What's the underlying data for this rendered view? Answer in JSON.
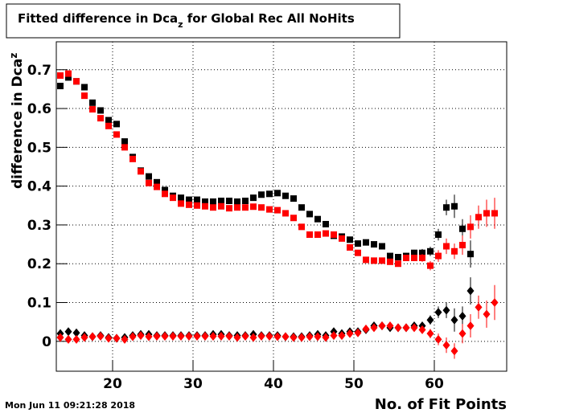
{
  "chart_data": {
    "type": "scatter",
    "title": {
      "text": "Fitted difference in Dca",
      "sub": "z",
      "rest": " for Global Rec All NoHits"
    },
    "ylabel": {
      "text": "difference in Dca",
      "sub": "z"
    },
    "xlabel": "No. of Fit Points",
    "timestamp": "Mon Jun 11 09:21:28 2018",
    "grid": true,
    "xlim": [
      13,
      69
    ],
    "xticks": [
      20,
      30,
      40,
      50,
      60
    ],
    "ylim": [
      -0.077,
      0.772
    ],
    "yticks": [
      0,
      0.1,
      0.2,
      0.3,
      0.4,
      0.5,
      0.6,
      0.7
    ],
    "x": [
      13.5,
      14.5,
      15.5,
      16.5,
      17.5,
      18.5,
      19.5,
      20.5,
      21.5,
      22.5,
      23.5,
      24.5,
      25.5,
      26.5,
      27.5,
      28.5,
      29.5,
      30.5,
      31.5,
      32.5,
      33.5,
      34.5,
      35.5,
      36.5,
      37.5,
      38.5,
      39.5,
      40.5,
      41.5,
      42.5,
      43.5,
      44.5,
      45.5,
      46.5,
      47.5,
      48.5,
      49.5,
      50.5,
      51.5,
      52.5,
      53.5,
      54.5,
      55.5,
      56.5,
      57.5,
      58.5,
      59.5,
      60.5,
      61.5,
      62.5,
      63.5,
      64.5,
      65.5,
      66.5,
      67.5
    ],
    "series": [
      {
        "color": "#000000",
        "marker": "square",
        "values": [
          0.658,
          0.68,
          0.67,
          0.655,
          0.615,
          0.595,
          0.57,
          0.56,
          0.515,
          0.475,
          0.44,
          0.425,
          0.41,
          0.39,
          0.375,
          0.37,
          0.365,
          0.365,
          0.36,
          0.36,
          0.362,
          0.362,
          0.36,
          0.362,
          0.37,
          0.378,
          0.38,
          0.382,
          0.375,
          0.368,
          0.345,
          0.328,
          0.315,
          0.302,
          0.272,
          0.27,
          0.262,
          0.252,
          0.255,
          0.25,
          0.245,
          0.22,
          0.217,
          0.22,
          0.228,
          0.228,
          0.232,
          0.275,
          0.345,
          0.348,
          0.29,
          0.225,
          null,
          null,
          null
        ],
        "errors": [
          0.005,
          0.005,
          0.005,
          0.005,
          0.005,
          0.005,
          0.005,
          0.005,
          0.005,
          0.005,
          0.005,
          0.005,
          0.005,
          0.005,
          0.005,
          0.005,
          0.005,
          0.005,
          0.005,
          0.005,
          0.005,
          0.005,
          0.005,
          0.005,
          0.005,
          0.005,
          0.005,
          0.005,
          0.005,
          0.005,
          0.005,
          0.005,
          0.005,
          0.005,
          0.005,
          0.005,
          0.005,
          0.005,
          0.005,
          0.005,
          0.005,
          0.005,
          0.005,
          0.008,
          0.008,
          0.01,
          0.012,
          0.015,
          0.02,
          0.03,
          0.025,
          0.035,
          null,
          null,
          null
        ]
      },
      {
        "color": "#ff0000",
        "marker": "square",
        "values": [
          0.685,
          0.69,
          0.67,
          0.633,
          0.598,
          0.575,
          0.555,
          0.533,
          0.5,
          0.47,
          0.438,
          0.408,
          0.398,
          0.38,
          0.37,
          0.355,
          0.352,
          0.35,
          0.348,
          0.345,
          0.348,
          0.343,
          0.345,
          0.345,
          0.347,
          0.345,
          0.34,
          0.338,
          0.33,
          0.318,
          0.295,
          0.275,
          0.275,
          0.278,
          0.275,
          0.265,
          0.242,
          0.228,
          0.21,
          0.208,
          0.208,
          0.205,
          0.2,
          0.215,
          0.215,
          0.215,
          0.195,
          0.22,
          0.245,
          0.232,
          0.248,
          0.295,
          0.32,
          0.33,
          0.33
        ],
        "errors": [
          0.005,
          0.005,
          0.005,
          0.005,
          0.005,
          0.005,
          0.005,
          0.005,
          0.005,
          0.005,
          0.005,
          0.005,
          0.005,
          0.005,
          0.005,
          0.005,
          0.005,
          0.005,
          0.005,
          0.005,
          0.005,
          0.005,
          0.005,
          0.005,
          0.005,
          0.005,
          0.005,
          0.005,
          0.005,
          0.005,
          0.005,
          0.005,
          0.005,
          0.005,
          0.005,
          0.005,
          0.005,
          0.005,
          0.005,
          0.005,
          0.005,
          0.005,
          0.005,
          0.008,
          0.008,
          0.01,
          0.012,
          0.015,
          0.02,
          0.02,
          0.025,
          0.03,
          0.03,
          0.035,
          0.04
        ]
      },
      {
        "color": "#000000",
        "marker": "diamond",
        "values": [
          0.02,
          0.025,
          0.022,
          0.015,
          0.012,
          0.015,
          0.01,
          0.008,
          0.01,
          0.015,
          0.018,
          0.018,
          0.015,
          0.015,
          0.015,
          0.015,
          0.015,
          0.015,
          0.015,
          0.018,
          0.018,
          0.015,
          0.015,
          0.015,
          0.018,
          0.015,
          0.015,
          0.015,
          0.012,
          0.012,
          0.012,
          0.015,
          0.018,
          0.015,
          0.025,
          0.02,
          0.025,
          0.025,
          0.03,
          0.04,
          0.04,
          0.035,
          0.035,
          0.035,
          0.04,
          0.04,
          0.055,
          0.075,
          0.08,
          0.055,
          0.065,
          0.13,
          null,
          null,
          null
        ],
        "errors": [
          0.005,
          0.005,
          0.005,
          0.005,
          0.005,
          0.005,
          0.005,
          0.005,
          0.005,
          0.005,
          0.005,
          0.005,
          0.005,
          0.005,
          0.005,
          0.005,
          0.005,
          0.005,
          0.005,
          0.005,
          0.005,
          0.005,
          0.005,
          0.005,
          0.005,
          0.005,
          0.005,
          0.005,
          0.005,
          0.005,
          0.005,
          0.005,
          0.005,
          0.005,
          0.005,
          0.005,
          0.005,
          0.005,
          0.005,
          0.005,
          0.005,
          0.005,
          0.005,
          0.008,
          0.008,
          0.01,
          0.012,
          0.015,
          0.02,
          0.03,
          0.025,
          0.035,
          null,
          null,
          null
        ]
      },
      {
        "color": "#ff0000",
        "marker": "diamond",
        "values": [
          0.01,
          0.005,
          0.005,
          0.01,
          0.012,
          0.013,
          0.008,
          0.008,
          0.005,
          0.012,
          0.015,
          0.012,
          0.013,
          0.013,
          0.013,
          0.013,
          0.013,
          0.013,
          0.013,
          0.013,
          0.013,
          0.013,
          0.01,
          0.013,
          0.01,
          0.013,
          0.013,
          0.012,
          0.012,
          0.01,
          0.01,
          0.012,
          0.012,
          0.01,
          0.015,
          0.015,
          0.02,
          0.022,
          0.032,
          0.035,
          0.04,
          0.04,
          0.035,
          0.035,
          0.035,
          0.03,
          0.02,
          0.005,
          -0.01,
          -0.025,
          0.02,
          0.04,
          0.088,
          0.07,
          0.1
        ],
        "errors": [
          0.005,
          0.005,
          0.005,
          0.005,
          0.005,
          0.005,
          0.005,
          0.005,
          0.005,
          0.005,
          0.005,
          0.005,
          0.005,
          0.005,
          0.005,
          0.005,
          0.005,
          0.005,
          0.005,
          0.005,
          0.005,
          0.005,
          0.005,
          0.005,
          0.005,
          0.005,
          0.005,
          0.005,
          0.005,
          0.005,
          0.005,
          0.005,
          0.005,
          0.005,
          0.005,
          0.005,
          0.005,
          0.005,
          0.005,
          0.005,
          0.005,
          0.005,
          0.005,
          0.008,
          0.008,
          0.01,
          0.012,
          0.015,
          0.02,
          0.02,
          0.025,
          0.03,
          0.03,
          0.035,
          0.045
        ]
      }
    ]
  }
}
